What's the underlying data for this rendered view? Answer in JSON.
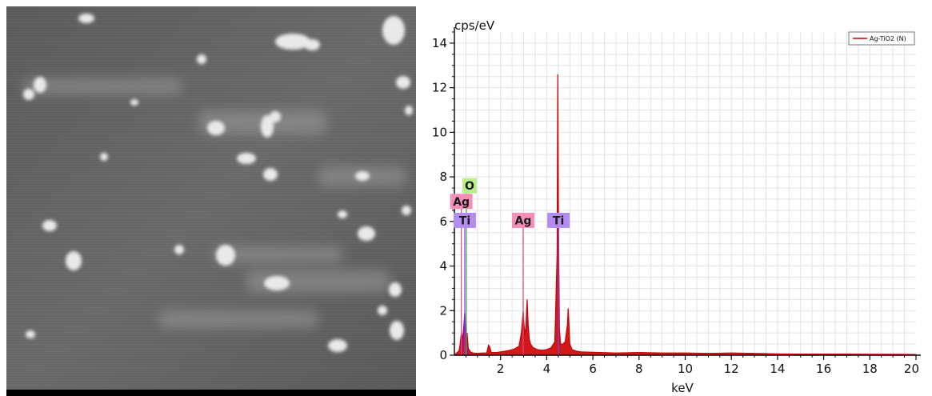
{
  "sem_image": {
    "type": "SEM micrograph (grayscale)",
    "colors": {
      "background": "#6a6a6a",
      "particle": "#e8e8e8"
    }
  },
  "chart_data": {
    "type": "line",
    "title": "",
    "xlabel": "keV",
    "ylabel": "cps/eV",
    "xlim": [
      0,
      20
    ],
    "ylim": [
      0,
      14.5
    ],
    "x_ticks": [
      2,
      4,
      6,
      8,
      10,
      12,
      14,
      16,
      18,
      20
    ],
    "x_tick_labels": [
      "2",
      "4",
      "6",
      "8",
      "10",
      "12",
      "14",
      "16",
      "18",
      "20"
    ],
    "y_ticks": [
      0,
      2,
      4,
      6,
      8,
      10,
      12,
      14
    ],
    "y_tick_labels": [
      "0",
      "2",
      "4",
      "6",
      "8",
      "10",
      "12",
      "14"
    ],
    "grid": true,
    "legend_position": "top-right",
    "series": [
      {
        "name": "Ag-TiO2 (N)",
        "color": "#cc0000",
        "fill": "#cc0000",
        "x": [
          0.0,
          0.1,
          0.2,
          0.25,
          0.3,
          0.35,
          0.4,
          0.45,
          0.5,
          0.55,
          0.6,
          0.7,
          0.8,
          1.0,
          1.2,
          1.4,
          1.48,
          1.52,
          1.6,
          1.8,
          2.0,
          2.2,
          2.4,
          2.6,
          2.8,
          2.9,
          2.95,
          2.98,
          3.0,
          3.05,
          3.1,
          3.15,
          3.2,
          3.25,
          3.3,
          3.4,
          3.6,
          3.8,
          4.0,
          4.2,
          4.35,
          4.45,
          4.48,
          4.51,
          4.55,
          4.6,
          4.7,
          4.8,
          4.9,
          4.93,
          4.96,
          5.0,
          5.1,
          5.3,
          5.5,
          6.0,
          7.0,
          8.0,
          9.0,
          10.0,
          11.0,
          12.0,
          13.0,
          14.0,
          15.0,
          16.0,
          17.0,
          18.0,
          19.0,
          20.0
        ],
        "y": [
          0.0,
          0.1,
          0.2,
          0.5,
          1.0,
          0.7,
          1.2,
          1.9,
          0.4,
          1.0,
          0.3,
          0.15,
          0.1,
          0.08,
          0.1,
          0.1,
          0.45,
          0.4,
          0.12,
          0.12,
          0.15,
          0.18,
          0.22,
          0.28,
          0.4,
          1.0,
          1.6,
          2.0,
          1.6,
          0.9,
          1.3,
          2.5,
          1.3,
          0.7,
          0.5,
          0.35,
          0.25,
          0.22,
          0.25,
          0.35,
          0.6,
          4.5,
          12.6,
          6.0,
          1.2,
          0.5,
          0.5,
          0.6,
          1.4,
          2.1,
          1.5,
          0.5,
          0.25,
          0.18,
          0.15,
          0.13,
          0.1,
          0.12,
          0.1,
          0.1,
          0.08,
          0.1,
          0.08,
          0.06,
          0.05,
          0.05,
          0.05,
          0.04,
          0.04,
          0.03
        ]
      },
      {
        "name": "",
        "color": "#a000b0",
        "x": [
          0.3,
          0.35,
          0.4,
          0.45,
          0.5,
          0.55,
          0.6
        ],
        "y": [
          0.0,
          0.5,
          1.0,
          1.9,
          0.8,
          0.3,
          0.0
        ]
      }
    ],
    "peak_markers": [
      {
        "label": "O",
        "x": 0.52,
        "line_top": 7.3,
        "label_y": 7.6,
        "color": "#b8f08a",
        "line_color": "#4caf50"
      },
      {
        "label": "Ag",
        "x": 0.3,
        "line_top": 6.6,
        "label_y": 6.9,
        "color": "#f58fb8",
        "line_color": "#e0478a"
      },
      {
        "label": "Ti",
        "x": 0.45,
        "line_top": 6.0,
        "label_y": 6.05,
        "color": "#b38cf0",
        "line_color": "#7a45d8"
      },
      {
        "label": "Ag",
        "x": 2.98,
        "line_top": 6.0,
        "label_y": 6.05,
        "color": "#f58fb8",
        "line_color": "#e0478a"
      },
      {
        "label": "Ti",
        "x": 4.51,
        "line_top": 6.0,
        "label_y": 6.05,
        "color": "#b38cf0",
        "line_color": "#7a45d8"
      }
    ]
  }
}
